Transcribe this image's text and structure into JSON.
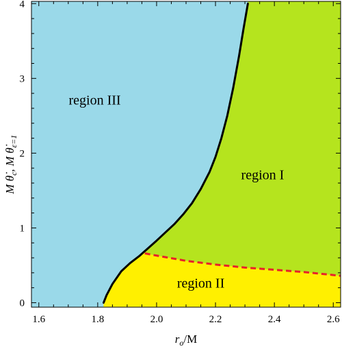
{
  "chart_data": {
    "type": "area",
    "xlabel": "r_o/M",
    "ylabel": "M θ̇_c, M θ̇_{ε=1}",
    "xlim": [
      1.575,
      2.625
    ],
    "ylim": [
      -0.06,
      4.03
    ],
    "x_ticks": [
      "1.6",
      "1.8",
      "2.0",
      "2.2",
      "2.4",
      "2.6"
    ],
    "y_ticks": [
      "0",
      "1",
      "2",
      "3",
      "4"
    ],
    "colors": {
      "region_I": "#b5e41e",
      "region_II": "#fff000",
      "region_III": "#9ad9e9",
      "critical_curve": "#000000",
      "eps1_curve": "#e8202a"
    },
    "series": [
      {
        "style": "solid-black",
        "x": [
          1.82,
          1.83,
          1.85,
          1.88,
          1.91,
          1.94,
          1.96,
          1.98,
          2.0,
          2.03,
          2.06,
          2.09,
          2.12,
          2.15,
          2.18,
          2.2,
          2.22,
          2.24,
          2.26,
          2.28,
          2.295,
          2.31
        ],
        "y": [
          0.0,
          0.1,
          0.25,
          0.42,
          0.53,
          0.62,
          0.69,
          0.76,
          0.83,
          0.94,
          1.05,
          1.18,
          1.33,
          1.52,
          1.75,
          1.95,
          2.2,
          2.5,
          2.87,
          3.3,
          3.66,
          4.0
        ]
      },
      {
        "style": "dashed-red",
        "x": [
          1.96,
          2.0,
          2.1,
          2.2,
          2.3,
          2.4,
          2.5,
          2.6,
          2.625
        ],
        "y": [
          0.66,
          0.63,
          0.56,
          0.51,
          0.47,
          0.44,
          0.41,
          0.37,
          0.36
        ]
      }
    ],
    "annotations": [
      {
        "text": "region III",
        "x": 1.79,
        "y": 2.65
      },
      {
        "text": "region I",
        "x": 2.36,
        "y": 1.65
      },
      {
        "text": "region II",
        "x": 2.15,
        "y": 0.2
      }
    ]
  }
}
